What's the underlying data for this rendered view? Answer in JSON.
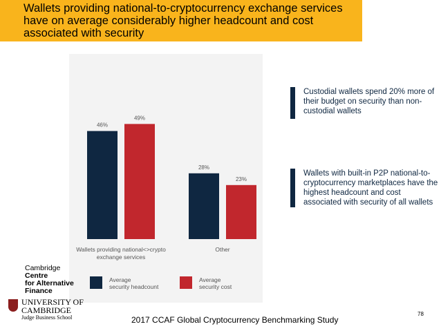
{
  "header": {
    "title_lines": [
      "Wallets providing national-to-cryptocurrency exchange services",
      "have on average considerably higher headcount and cost",
      "associated with security"
    ]
  },
  "chart_data": {
    "type": "bar",
    "categories": [
      "Wallets providing national<>crypto exchange services",
      "Other"
    ],
    "category_label_lines": [
      [
        "Wallets providing national<>crypto",
        "exchange services"
      ],
      [
        "Other"
      ]
    ],
    "series": [
      {
        "name": "Average security headcount",
        "legend_lines": [
          "Average",
          "security headcount"
        ],
        "values": [
          46,
          28
        ],
        "labels": [
          "46%",
          "28%"
        ],
        "color": "#0F2741"
      },
      {
        "name": "Average security cost",
        "legend_lines": [
          "Average",
          "security cost"
        ],
        "values": [
          49,
          23
        ],
        "labels": [
          "49%",
          "23%"
        ],
        "color": "#C1272D"
      }
    ],
    "ylim": [
      0,
      60
    ],
    "grid": false,
    "legend_position": "bottom"
  },
  "callouts": [
    {
      "text": "Custodial wallets spend 20% more of their budget on security than non-custodial wallets"
    },
    {
      "text": "Wallets with built-in P2P national-to-cryptocurrency marketplaces have the highest headcount and cost associated with security of all wallets"
    }
  ],
  "logos": {
    "ccaf_lines": [
      "Cambridge",
      "Centre",
      "for Alternative",
      "Finance"
    ],
    "university_lines": [
      "UNIVERSITY OF",
      "CAMBRIDGE",
      "Judge Business School"
    ]
  },
  "footer": {
    "text": "2017 CCAF Global Cryptocurrency Benchmarking Study",
    "page_number": "78"
  },
  "colors": {
    "header_bg": "#F9B41C",
    "navy": "#0F2741",
    "red": "#C1272D",
    "panel_bg": "#F3F3F3"
  }
}
